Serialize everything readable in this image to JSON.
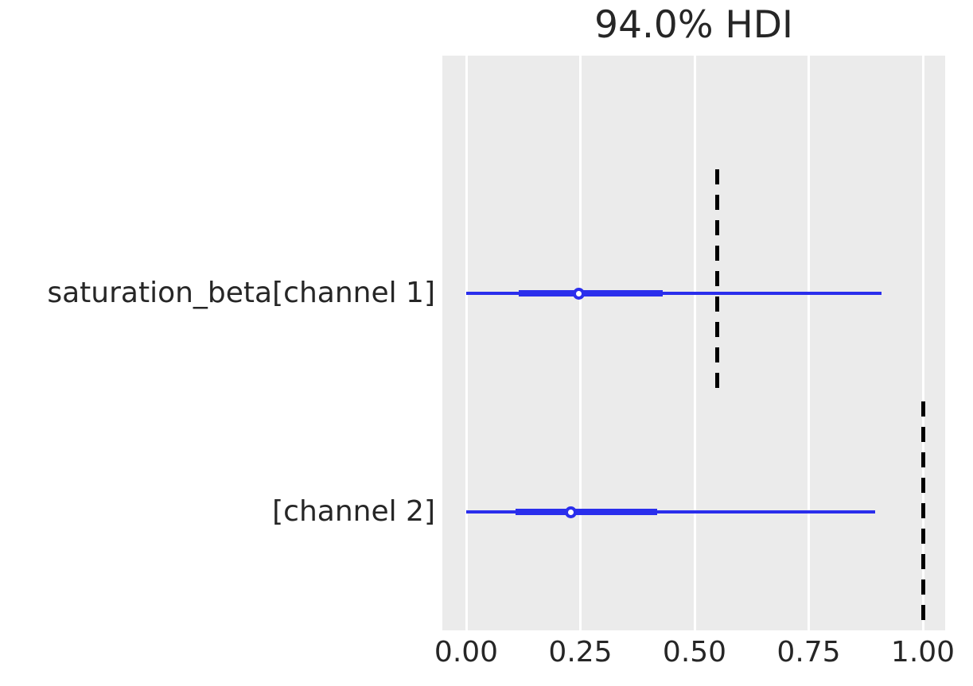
{
  "chart_data": {
    "type": "forest",
    "title": "94.0% HDI",
    "xlabel": "",
    "ylabel": "",
    "xlim": [
      -0.05,
      1.05
    ],
    "grid": "vertical white gridlines on gray panel",
    "legend": "none",
    "xticks": [
      {
        "value": 0.0,
        "label": "0.00"
      },
      {
        "value": 0.25,
        "label": "0.25"
      },
      {
        "value": 0.5,
        "label": "0.50"
      },
      {
        "value": 0.75,
        "label": "0.75"
      },
      {
        "value": 1.0,
        "label": "1.00"
      }
    ],
    "rows": [
      {
        "label": "saturation_beta[channel 1]",
        "hdi_lower": 0.0,
        "hdi_upper": 0.91,
        "quartile_lower": 0.115,
        "quartile_upper": 0.43,
        "median": 0.246,
        "reference_line": 0.55
      },
      {
        "label": "[channel 2]",
        "hdi_lower": 0.0,
        "hdi_upper": 0.895,
        "quartile_lower": 0.108,
        "quartile_upper": 0.418,
        "median": 0.229,
        "reference_line": 1.0
      }
    ],
    "colors": {
      "credible_interval": "#2a2eec",
      "median_marker_fill": "#ffffff",
      "reference_line": "#000000",
      "plot_background": "#ebebeb",
      "gridline": "#ffffff",
      "text": "#262626"
    }
  }
}
